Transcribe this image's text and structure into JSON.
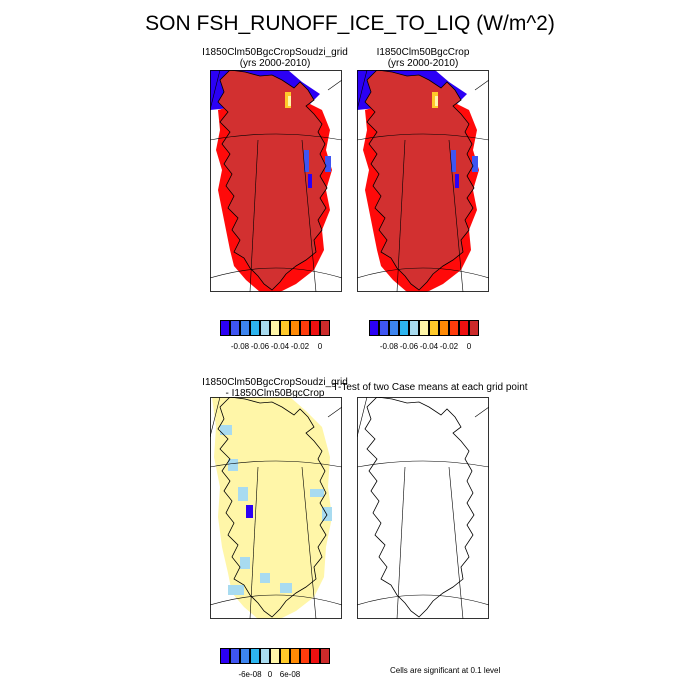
{
  "title": "SON FSH_RUNOFF_ICE_TO_LIQ (W/m^2)",
  "panels": [
    {
      "title": "I1850Clm50BgcCropSoudzi_grid",
      "subtitle": "(yrs 2000-2010)",
      "kind": "field"
    },
    {
      "title": "I1850Clm50BgcCrop",
      "subtitle": "(yrs 2000-2010)",
      "kind": "field"
    },
    {
      "title": "I1850Clm50BgcCropSoudzi_grid",
      "subtitle": "- I1850Clm50BgcCrop",
      "kind": "difference"
    },
    {
      "title": "T-Test of two Case means at each grid point",
      "subtitle": "",
      "kind": "ttest"
    }
  ],
  "colorbars": {
    "field": {
      "colors": [
        "#2b00f5",
        "#3f55f2",
        "#3d85f0",
        "#2db5f0",
        "#a8dbf0",
        "#fff6a8",
        "#ffca2a",
        "#ff8a05",
        "#ff3c0c",
        "#ee1010",
        "#cc2a2a"
      ],
      "tick_labels": [
        "-0.08",
        "-0.06",
        "-0.04",
        "-0.02",
        "0"
      ]
    },
    "diff": {
      "colors": [
        "#2b00f5",
        "#3f55f2",
        "#3d85f0",
        "#2db5f0",
        "#a8dbf0",
        "#fff6a8",
        "#ffca2a",
        "#ff8a05",
        "#ff3c0c",
        "#ee1010",
        "#cc2a2a"
      ],
      "tick_labels": [
        "-6e-08",
        "0",
        "6e-08"
      ]
    }
  },
  "note": "Cells are significant at 0.1 level",
  "chart_data": {
    "type": "heatmap",
    "title": "SON FSH_RUNOFF_ICE_TO_LIQ (W/m^2)",
    "region": "Greenland",
    "series": [
      {
        "name": "I1850Clm50BgcCropSoudzi_grid",
        "dominant_value": 0,
        "min_value": -0.08
      },
      {
        "name": "I1850Clm50BgcCrop",
        "dominant_value": 0,
        "min_value": -0.08
      },
      {
        "name": "I1850Clm50BgcCropSoudzi_grid - I1850Clm50BgcCrop",
        "dominant_value": 0,
        "range": [
          -6e-08,
          6e-08
        ]
      }
    ],
    "field_colorbar_ticks": [
      -0.08,
      -0.06,
      -0.04,
      -0.02,
      0
    ],
    "diff_colorbar_ticks": [
      -6e-08,
      0,
      6e-08
    ],
    "grid": true,
    "legend": "bottom"
  }
}
